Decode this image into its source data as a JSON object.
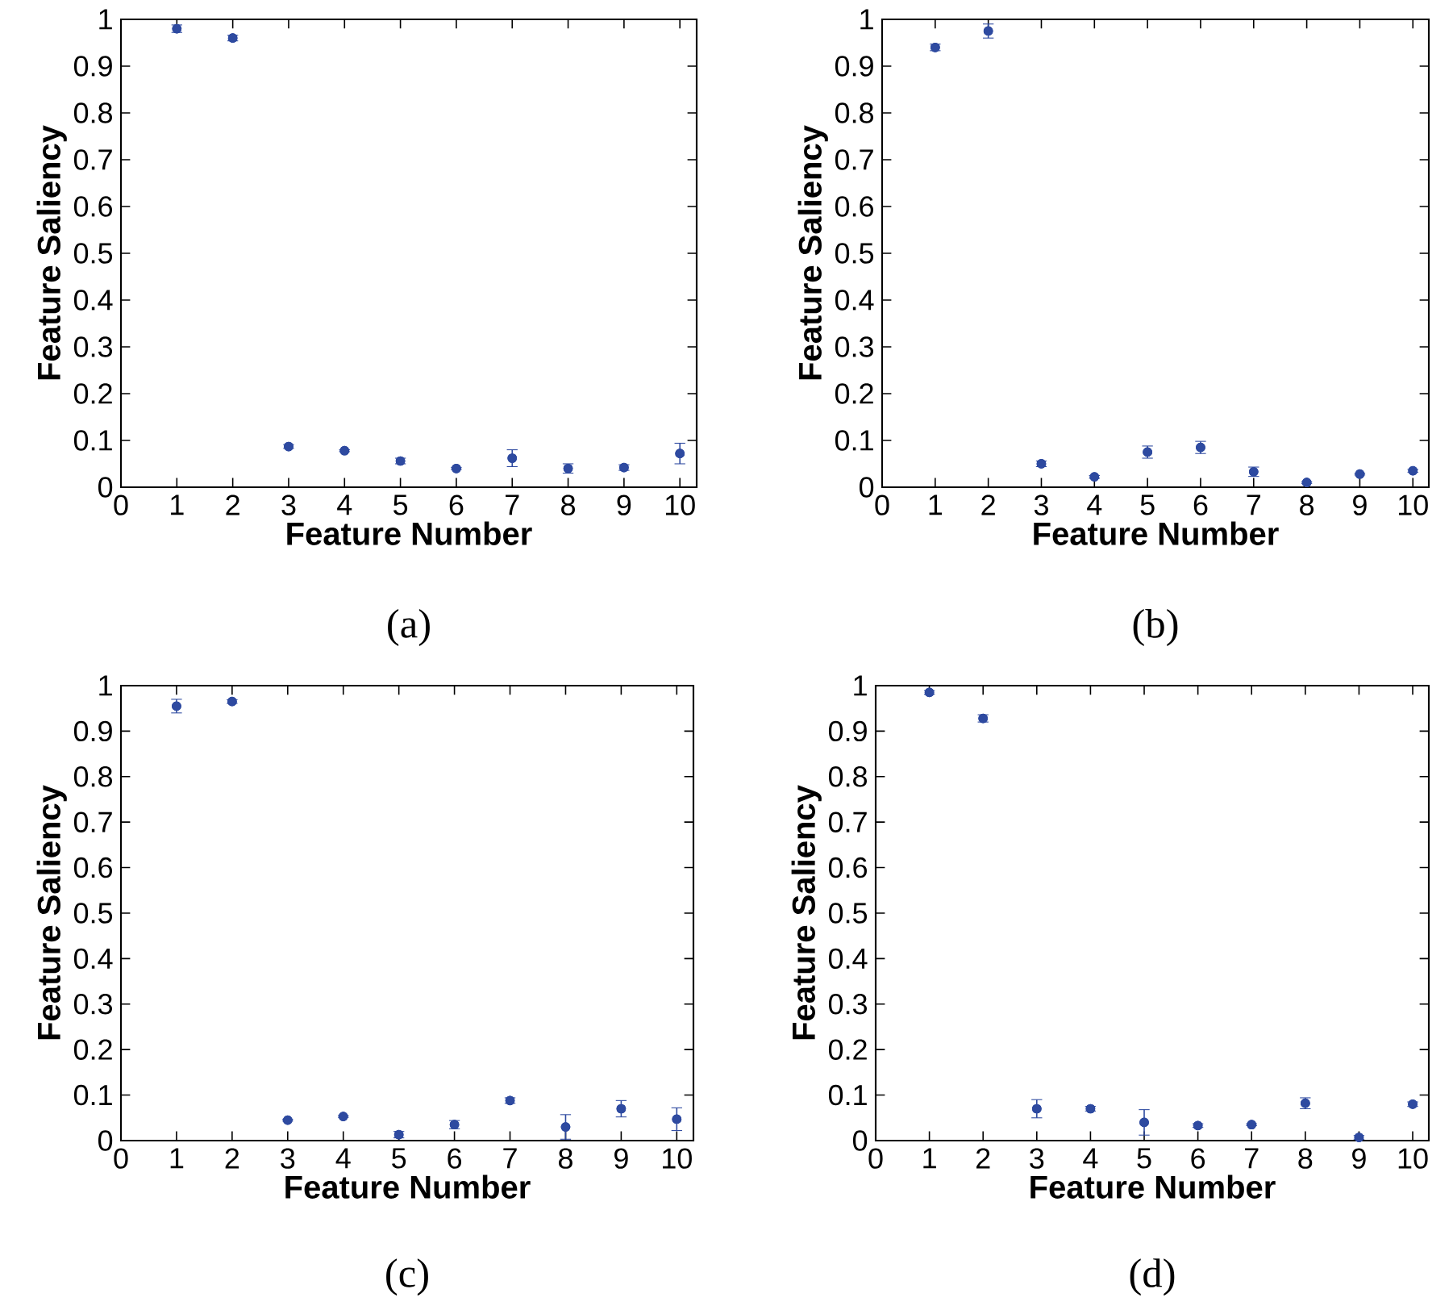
{
  "chart_data": [
    {
      "type": "scatter",
      "xlabel": "Feature Number",
      "ylabel": "Feature Saliency",
      "annotations": [
        "(a)"
      ],
      "x": [
        1,
        2,
        3,
        4,
        5,
        6,
        7,
        8,
        9,
        10
      ],
      "color": "#2e4aa0",
      "marker": "circle",
      "grid": false,
      "xlim": [
        0,
        10.3
      ],
      "ylim": [
        0,
        1
      ],
      "xticks": [
        0,
        1,
        2,
        3,
        4,
        5,
        6,
        7,
        8,
        9,
        10
      ],
      "yticks": [
        0,
        0.1,
        0.2,
        0.3,
        0.4,
        0.5,
        0.6,
        0.7,
        0.8,
        0.9,
        1
      ],
      "values": [
        0.98,
        0.96,
        0.087,
        0.078,
        0.056,
        0.04,
        0.062,
        0.04,
        0.042,
        0.072
      ],
      "errors": [
        0.008,
        0.006,
        0.004,
        0.002,
        0.006,
        0.002,
        0.018,
        0.01,
        0.006,
        0.022
      ]
    },
    {
      "type": "scatter",
      "xlabel": "Feature Number",
      "ylabel": "Feature Saliency",
      "annotations": [
        "(b)"
      ],
      "x": [
        1,
        2,
        3,
        4,
        5,
        6,
        7,
        8,
        9,
        10
      ],
      "color": "#2e4aa0",
      "marker": "circle",
      "grid": false,
      "xlim": [
        0,
        10.3
      ],
      "ylim": [
        0,
        1
      ],
      "xticks": [
        0,
        1,
        2,
        3,
        4,
        5,
        6,
        7,
        8,
        9,
        10
      ],
      "yticks": [
        0,
        0.1,
        0.2,
        0.3,
        0.4,
        0.5,
        0.6,
        0.7,
        0.8,
        0.9,
        1
      ],
      "values": [
        0.94,
        0.975,
        0.05,
        0.022,
        0.075,
        0.085,
        0.033,
        0.01,
        0.028,
        0.035
      ],
      "errors": [
        0.007,
        0.015,
        0.006,
        0.003,
        0.013,
        0.013,
        0.01,
        0.002,
        0.002,
        0.003
      ]
    },
    {
      "type": "scatter",
      "xlabel": "Feature Number",
      "ylabel": "Feature Saliency",
      "annotations": [
        "(c)"
      ],
      "x": [
        1,
        2,
        3,
        4,
        5,
        6,
        7,
        8,
        9,
        10
      ],
      "color": "#2e4aa0",
      "marker": "circle",
      "grid": false,
      "xlim": [
        0,
        10.3
      ],
      "ylim": [
        0,
        1
      ],
      "xticks": [
        0,
        1,
        2,
        3,
        4,
        5,
        6,
        7,
        8,
        9,
        10
      ],
      "yticks": [
        0,
        0.1,
        0.2,
        0.3,
        0.4,
        0.5,
        0.6,
        0.7,
        0.8,
        0.9,
        1
      ],
      "values": [
        0.955,
        0.965,
        0.045,
        0.053,
        0.013,
        0.035,
        0.088,
        0.03,
        0.07,
        0.047
      ],
      "errors": [
        0.015,
        0.004,
        0.002,
        0.002,
        0.007,
        0.009,
        0.006,
        0.027,
        0.018,
        0.025
      ]
    },
    {
      "type": "scatter",
      "xlabel": "Feature Number",
      "ylabel": "Feature Saliency",
      "annotations": [
        "(d)"
      ],
      "x": [
        1,
        2,
        3,
        4,
        5,
        6,
        7,
        8,
        9,
        10
      ],
      "color": "#2e4aa0",
      "marker": "circle",
      "grid": false,
      "xlim": [
        0,
        10.3
      ],
      "ylim": [
        0,
        1
      ],
      "xticks": [
        0,
        1,
        2,
        3,
        4,
        5,
        6,
        7,
        8,
        9,
        10
      ],
      "yticks": [
        0,
        0.1,
        0.2,
        0.3,
        0.4,
        0.5,
        0.6,
        0.7,
        0.8,
        0.9,
        1
      ],
      "values": [
        0.985,
        0.928,
        0.07,
        0.07,
        0.04,
        0.033,
        0.035,
        0.082,
        0.007,
        0.08
      ],
      "errors": [
        0.004,
        0.008,
        0.02,
        0.005,
        0.028,
        0.004,
        0.002,
        0.012,
        0.004,
        0.005
      ]
    }
  ]
}
